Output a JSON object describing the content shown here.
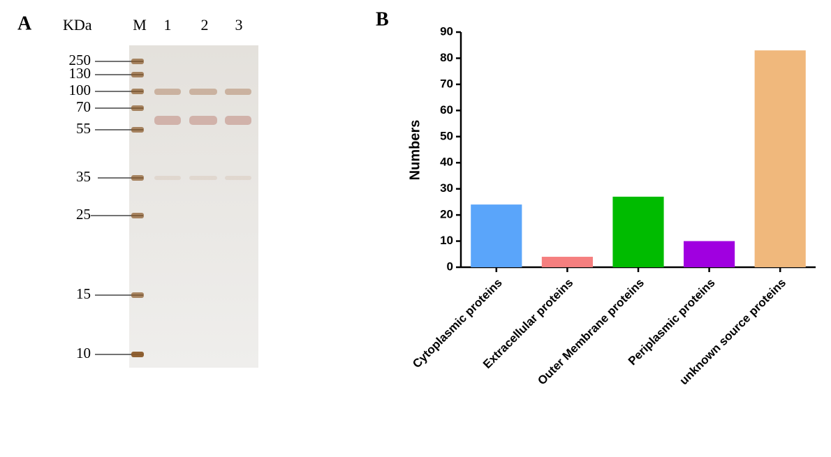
{
  "gel": {
    "panel_label": "A",
    "unit_label": "KDa",
    "lanes": [
      "M",
      "1",
      "2",
      "3"
    ],
    "markers": [
      250,
      130,
      100,
      70,
      55,
      35,
      25,
      15,
      10
    ]
  },
  "chart_data": {
    "type": "bar",
    "panel_label": "B",
    "y_label": "Numbers",
    "categories": [
      "Cytoplasmic proteins",
      "Extracellular proteins",
      "Outer Membrane proteins",
      "Periplasmic proteins",
      "unknown source proteins"
    ],
    "values": [
      24,
      4,
      27,
      10,
      83
    ],
    "colors": [
      "#5aa5fa",
      "#f57f7f",
      "#00bb00",
      "#a000e0",
      "#f0b87c"
    ],
    "ylim": [
      0,
      90
    ],
    "yticks": [
      0,
      10,
      20,
      30,
      40,
      50,
      60,
      70,
      80,
      90
    ],
    "grid": false
  }
}
